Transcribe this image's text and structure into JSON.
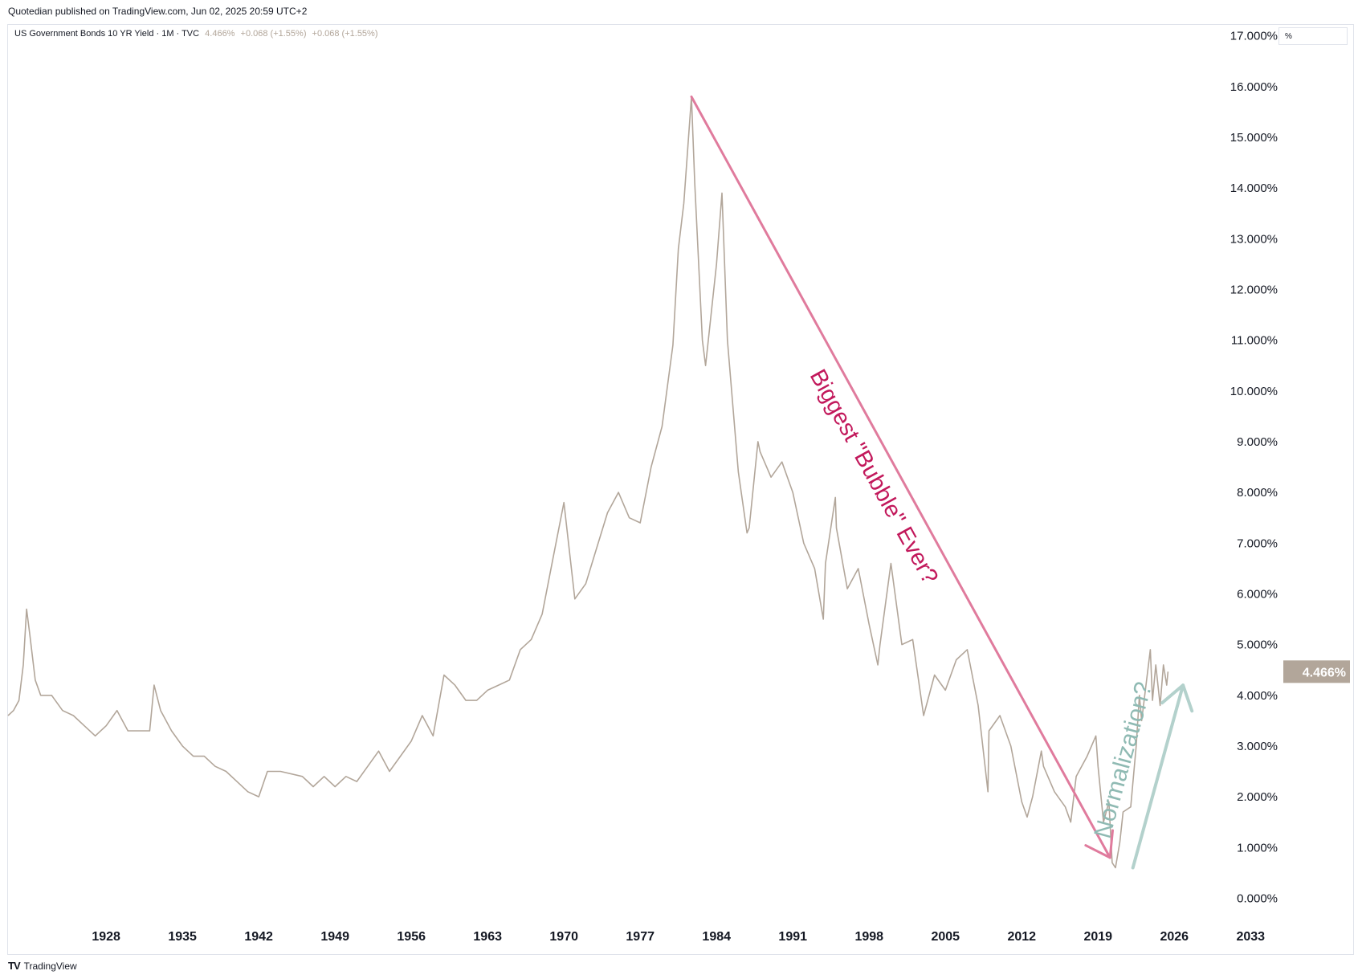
{
  "header": {
    "published": "Quotedian published on TradingView.com, Jun 02, 2025 20:59 UTC+2"
  },
  "legend": {
    "symbol": "US Government Bonds 10 YR Yield · 1M · TVC",
    "price": "4.466%",
    "change1": "+0.068 (+1.55%)",
    "change2": "+0.068 (+1.55%)"
  },
  "axis": {
    "unit": "%"
  },
  "footer": {
    "brand": "TradingView"
  },
  "colors": {
    "line": "#b2a69a",
    "down_arrow": "#e07b9d",
    "up_arrow": "#b3d1cc",
    "label_bubble": "#c2185b",
    "label_normal": "#8fbab3"
  },
  "chart_data": {
    "type": "line",
    "title": "",
    "xlabel": "",
    "ylabel": "",
    "xlim": [
      1919,
      2036
    ],
    "ylim": [
      -0.5,
      17.2
    ],
    "grid": false,
    "x_ticks": [
      "1928",
      "1935",
      "1942",
      "1949",
      "1956",
      "1963",
      "1970",
      "1977",
      "1984",
      "1991",
      "1998",
      "2005",
      "2012",
      "2019",
      "2026",
      "2033"
    ],
    "y_ticks": [
      "0.000%",
      "1.000%",
      "2.000%",
      "3.000%",
      "4.000%",
      "5.000%",
      "6.000%",
      "7.000%",
      "8.000%",
      "9.000%",
      "10.000%",
      "11.000%",
      "12.000%",
      "13.000%",
      "14.000%",
      "15.000%",
      "16.000%",
      "17.000%"
    ],
    "last_value_label": "4.466%",
    "series": [
      {
        "values": [
          [
            1919.0,
            3.6
          ],
          [
            1919.5,
            3.7
          ],
          [
            1920.0,
            3.9
          ],
          [
            1920.4,
            4.6
          ],
          [
            1920.7,
            5.7
          ],
          [
            1921.0,
            5.2
          ],
          [
            1921.5,
            4.3
          ],
          [
            1922.0,
            4.0
          ],
          [
            1923.0,
            4.0
          ],
          [
            1924.0,
            3.7
          ],
          [
            1925.0,
            3.6
          ],
          [
            1926.0,
            3.4
          ],
          [
            1927.0,
            3.2
          ],
          [
            1928.0,
            3.4
          ],
          [
            1929.0,
            3.7
          ],
          [
            1930.0,
            3.3
          ],
          [
            1931.0,
            3.3
          ],
          [
            1932.0,
            3.3
          ],
          [
            1932.4,
            4.2
          ],
          [
            1933.0,
            3.7
          ],
          [
            1934.0,
            3.3
          ],
          [
            1935.0,
            3.0
          ],
          [
            1936.0,
            2.8
          ],
          [
            1937.0,
            2.8
          ],
          [
            1938.0,
            2.6
          ],
          [
            1939.0,
            2.5
          ],
          [
            1940.0,
            2.3
          ],
          [
            1941.0,
            2.1
          ],
          [
            1942.0,
            2.0
          ],
          [
            1942.8,
            2.5
          ],
          [
            1944.0,
            2.5
          ],
          [
            1946.0,
            2.4
          ],
          [
            1947.0,
            2.2
          ],
          [
            1948.0,
            2.4
          ],
          [
            1949.0,
            2.2
          ],
          [
            1950.0,
            2.4
          ],
          [
            1951.0,
            2.3
          ],
          [
            1952.0,
            2.6
          ],
          [
            1953.0,
            2.9
          ],
          [
            1954.0,
            2.5
          ],
          [
            1955.0,
            2.8
          ],
          [
            1956.0,
            3.1
          ],
          [
            1957.0,
            3.6
          ],
          [
            1958.0,
            3.2
          ],
          [
            1959.0,
            4.4
          ],
          [
            1960.0,
            4.2
          ],
          [
            1961.0,
            3.9
          ],
          [
            1962.0,
            3.9
          ],
          [
            1963.0,
            4.1
          ],
          [
            1964.0,
            4.2
          ],
          [
            1965.0,
            4.3
          ],
          [
            1966.0,
            4.9
          ],
          [
            1967.0,
            5.1
          ],
          [
            1968.0,
            5.6
          ],
          [
            1969.0,
            6.7
          ],
          [
            1970.0,
            7.8
          ],
          [
            1971.0,
            5.9
          ],
          [
            1972.0,
            6.2
          ],
          [
            1973.0,
            6.9
          ],
          [
            1974.0,
            7.6
          ],
          [
            1975.0,
            8.0
          ],
          [
            1976.0,
            7.5
          ],
          [
            1977.0,
            7.4
          ],
          [
            1978.0,
            8.5
          ],
          [
            1979.0,
            9.3
          ],
          [
            1980.0,
            10.9
          ],
          [
            1980.5,
            12.8
          ],
          [
            1981.0,
            13.7
          ],
          [
            1981.7,
            15.8
          ],
          [
            1982.0,
            14.1
          ],
          [
            1982.7,
            11.0
          ],
          [
            1983.0,
            10.5
          ],
          [
            1984.0,
            12.5
          ],
          [
            1984.5,
            13.9
          ],
          [
            1985.0,
            11.0
          ],
          [
            1986.0,
            8.4
          ],
          [
            1986.8,
            7.2
          ],
          [
            1987.0,
            7.3
          ],
          [
            1987.8,
            9.0
          ],
          [
            1988.0,
            8.8
          ],
          [
            1989.0,
            8.3
          ],
          [
            1990.0,
            8.6
          ],
          [
            1991.0,
            8.0
          ],
          [
            1992.0,
            7.0
          ],
          [
            1993.0,
            6.5
          ],
          [
            1993.8,
            5.5
          ],
          [
            1994.0,
            6.6
          ],
          [
            1994.9,
            7.9
          ],
          [
            1995.0,
            7.3
          ],
          [
            1996.0,
            6.1
          ],
          [
            1997.0,
            6.5
          ],
          [
            1998.0,
            5.4
          ],
          [
            1998.8,
            4.6
          ],
          [
            1999.0,
            5.0
          ],
          [
            2000.0,
            6.6
          ],
          [
            2001.0,
            5.0
          ],
          [
            2002.0,
            5.1
          ],
          [
            2003.0,
            3.6
          ],
          [
            2004.0,
            4.4
          ],
          [
            2005.0,
            4.1
          ],
          [
            2006.0,
            4.7
          ],
          [
            2007.0,
            4.9
          ],
          [
            2008.0,
            3.8
          ],
          [
            2008.9,
            2.1
          ],
          [
            2009.0,
            3.3
          ],
          [
            2010.0,
            3.6
          ],
          [
            2011.0,
            3.0
          ],
          [
            2012.0,
            1.9
          ],
          [
            2012.5,
            1.6
          ],
          [
            2013.0,
            2.0
          ],
          [
            2013.8,
            2.9
          ],
          [
            2014.0,
            2.6
          ],
          [
            2015.0,
            2.1
          ],
          [
            2016.0,
            1.8
          ],
          [
            2016.5,
            1.5
          ],
          [
            2017.0,
            2.4
          ],
          [
            2018.0,
            2.8
          ],
          [
            2018.8,
            3.2
          ],
          [
            2019.0,
            2.6
          ],
          [
            2019.5,
            1.5
          ],
          [
            2020.0,
            1.9
          ],
          [
            2020.3,
            0.7
          ],
          [
            2020.6,
            0.6
          ],
          [
            2021.0,
            1.1
          ],
          [
            2021.3,
            1.7
          ],
          [
            2022.0,
            1.8
          ],
          [
            2022.5,
            3.0
          ],
          [
            2022.8,
            4.0
          ],
          [
            2023.0,
            3.5
          ],
          [
            2023.8,
            4.9
          ],
          [
            2024.0,
            3.9
          ],
          [
            2024.3,
            4.6
          ],
          [
            2024.7,
            3.8
          ],
          [
            2025.0,
            4.6
          ],
          [
            2025.3,
            4.2
          ],
          [
            2025.42,
            4.466
          ]
        ]
      }
    ],
    "annotations": [
      {
        "text": "Biggest \"Bubble\" Ever?",
        "from": [
          1981.7,
          15.8
        ],
        "to": [
          2020.1,
          0.8
        ]
      },
      {
        "text": "Normalization?",
        "from": [
          2022.2,
          0.6
        ],
        "to": [
          2026.8,
          4.2
        ]
      }
    ]
  }
}
